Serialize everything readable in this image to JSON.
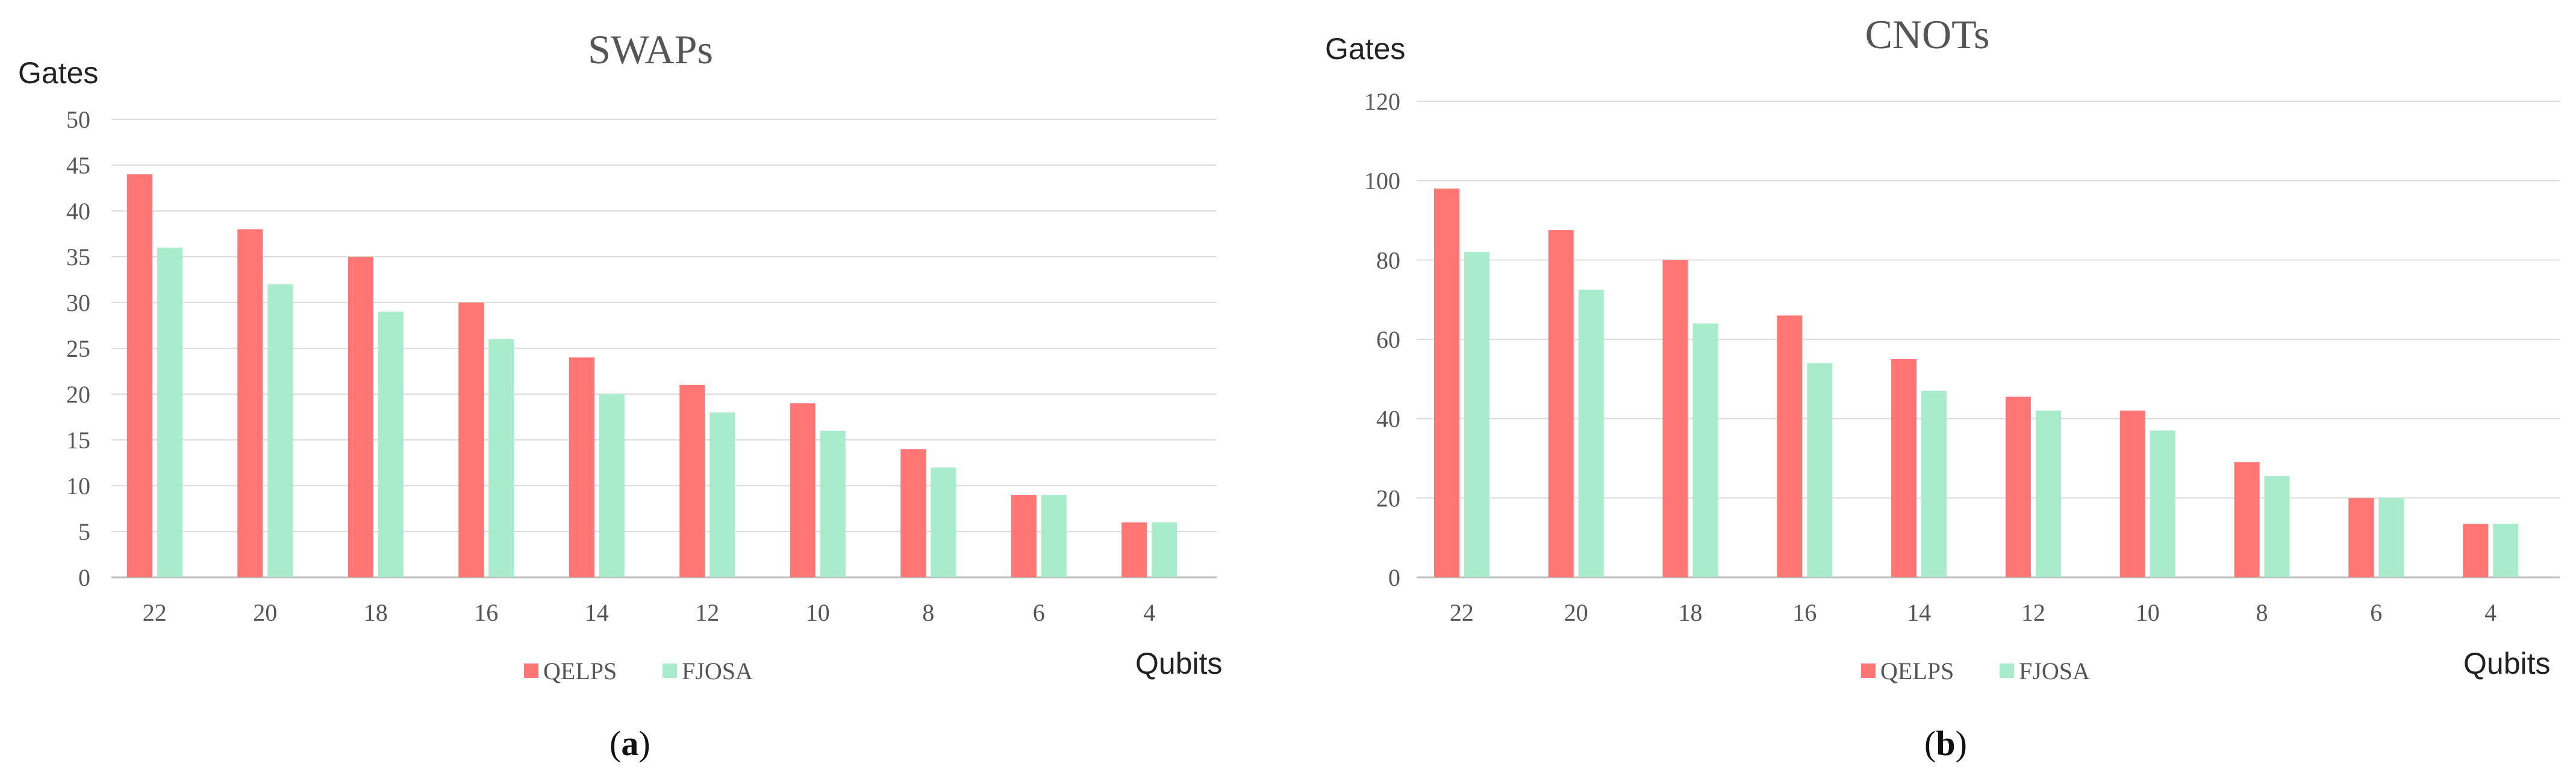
{
  "chart_data": [
    {
      "type": "bar",
      "title": "SWAPs",
      "xlabel": "Qubits",
      "ylabel": "Gates",
      "categories": [
        "22",
        "20",
        "18",
        "16",
        "14",
        "12",
        "10",
        "8",
        "6",
        "4"
      ],
      "series": [
        {
          "name": "QELPS",
          "color": "#ff7675",
          "values": [
            44,
            38,
            35,
            30,
            24,
            21,
            19,
            14,
            9,
            6
          ]
        },
        {
          "name": "FJOSA",
          "color": "#a8eccb",
          "values": [
            36,
            32,
            29,
            26,
            20,
            18,
            16,
            12,
            9,
            6
          ]
        }
      ],
      "yticks": [
        "0",
        "5",
        "10",
        "15",
        "20",
        "25",
        "30",
        "35",
        "40",
        "45",
        "50"
      ],
      "ylim": [
        0,
        50
      ],
      "grid": true,
      "legend": "bottom-center"
    },
    {
      "type": "bar",
      "title": "CNOTs",
      "xlabel": "Qubits",
      "ylabel": "Gates",
      "categories": [
        "22",
        "20",
        "18",
        "16",
        "14",
        "12",
        "10",
        "8",
        "6",
        "4"
      ],
      "series": [
        {
          "name": "QELPS",
          "color": "#ff7675",
          "values": [
            98,
            87.5,
            80,
            66,
            55,
            45.5,
            42,
            29,
            20,
            13.5
          ]
        },
        {
          "name": "FJOSA",
          "color": "#a8eccb",
          "values": [
            82,
            72.5,
            64,
            54,
            47,
            42,
            37,
            25.5,
            20,
            13.5
          ]
        }
      ],
      "yticks": [
        "0",
        "20",
        "40",
        "60",
        "80",
        "100",
        "120"
      ],
      "ylim": [
        0,
        120
      ],
      "grid": true,
      "legend": "bottom-center"
    }
  ],
  "captions": {
    "a": {
      "open": "(",
      "letter": "a",
      "close": ")"
    },
    "b": {
      "open": "(",
      "letter": "b",
      "close": ")"
    }
  }
}
